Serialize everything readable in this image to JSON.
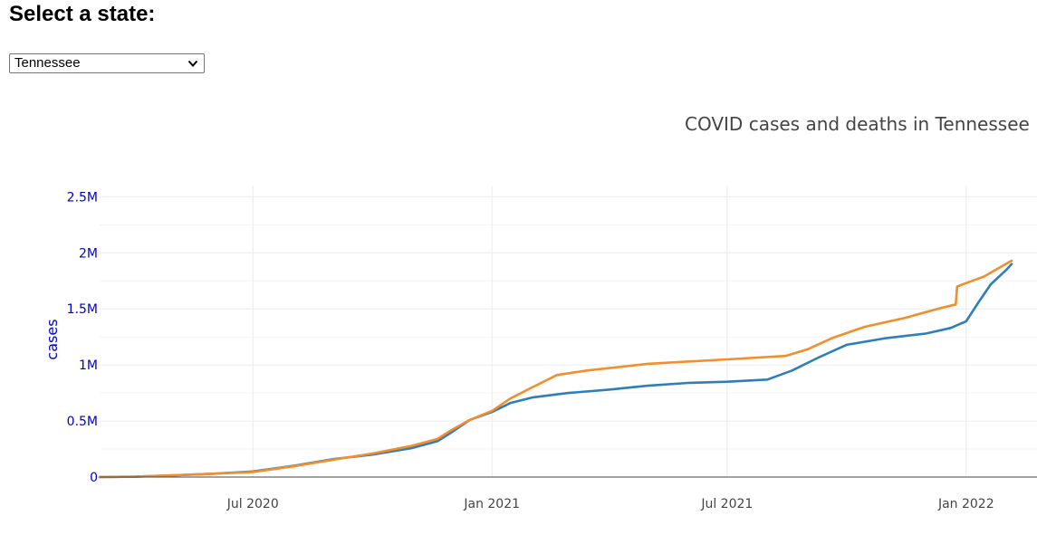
{
  "header": {
    "title": "Select a state:"
  },
  "state_select": {
    "value": "Tennessee"
  },
  "colors": {
    "cases": "#2f7ebc",
    "deaths": "#f28e2b",
    "y_axis": "#0000cc",
    "grid": "#ececec"
  },
  "chart_data": {
    "type": "line",
    "title": "COVID cases and deaths in Tennessee",
    "ylabel": "cases",
    "ylim": [
      0,
      2600000
    ],
    "xlim": [
      "2020-03-05",
      "2022-02-05"
    ],
    "y_ticks": [
      {
        "value": 0,
        "label": "0"
      },
      {
        "value": 500000,
        "label": "0.5M"
      },
      {
        "value": 1000000,
        "label": "1M"
      },
      {
        "value": 1500000,
        "label": "1.5M"
      },
      {
        "value": 2000000,
        "label": "2M"
      },
      {
        "value": 2500000,
        "label": "2.5M"
      }
    ],
    "x_ticks": [
      {
        "value": "2020-07-01",
        "label": "Jul 2020"
      },
      {
        "value": "2021-01-01",
        "label": "Jan 2021"
      },
      {
        "value": "2021-07-01",
        "label": "Jul 2021"
      },
      {
        "value": "2022-01-01",
        "label": "Jan 2022"
      }
    ],
    "grid": true,
    "legend": "none",
    "series": [
      {
        "color": "#2f7ebc",
        "points": [
          [
            "2020-03-05",
            0
          ],
          [
            "2020-04-01",
            3000
          ],
          [
            "2020-05-01",
            15000
          ],
          [
            "2020-06-01",
            30000
          ],
          [
            "2020-07-01",
            50000
          ],
          [
            "2020-08-01",
            100000
          ],
          [
            "2020-09-01",
            160000
          ],
          [
            "2020-10-01",
            200000
          ],
          [
            "2020-11-01",
            260000
          ],
          [
            "2020-11-20",
            320000
          ],
          [
            "2020-12-01",
            400000
          ],
          [
            "2020-12-15",
            510000
          ],
          [
            "2021-01-01",
            580000
          ],
          [
            "2021-01-15",
            660000
          ],
          [
            "2021-02-01",
            710000
          ],
          [
            "2021-03-01",
            750000
          ],
          [
            "2021-04-01",
            780000
          ],
          [
            "2021-05-01",
            815000
          ],
          [
            "2021-06-01",
            840000
          ],
          [
            "2021-07-01",
            850000
          ],
          [
            "2021-08-01",
            870000
          ],
          [
            "2021-08-20",
            950000
          ],
          [
            "2021-09-10",
            1070000
          ],
          [
            "2021-10-01",
            1180000
          ],
          [
            "2021-11-01",
            1240000
          ],
          [
            "2021-12-01",
            1280000
          ],
          [
            "2021-12-20",
            1330000
          ],
          [
            "2022-01-01",
            1390000
          ],
          [
            "2022-01-10",
            1550000
          ],
          [
            "2022-01-20",
            1720000
          ],
          [
            "2022-02-01",
            1850000
          ],
          [
            "2022-02-05",
            1900000
          ]
        ]
      },
      {
        "color": "#f28e2b",
        "points": [
          [
            "2020-03-05",
            0
          ],
          [
            "2020-04-01",
            3000
          ],
          [
            "2020-05-01",
            15000
          ],
          [
            "2020-06-01",
            30000
          ],
          [
            "2020-07-01",
            45000
          ],
          [
            "2020-08-01",
            95000
          ],
          [
            "2020-09-01",
            155000
          ],
          [
            "2020-10-01",
            210000
          ],
          [
            "2020-11-01",
            280000
          ],
          [
            "2020-11-20",
            340000
          ],
          [
            "2020-12-01",
            420000
          ],
          [
            "2020-12-15",
            510000
          ],
          [
            "2021-01-01",
            590000
          ],
          [
            "2021-01-15",
            700000
          ],
          [
            "2021-02-01",
            800000
          ],
          [
            "2021-02-20",
            910000
          ],
          [
            "2021-03-15",
            950000
          ],
          [
            "2021-05-01",
            1010000
          ],
          [
            "2021-07-01",
            1050000
          ],
          [
            "2021-08-15",
            1080000
          ],
          [
            "2021-09-01",
            1140000
          ],
          [
            "2021-09-20",
            1240000
          ],
          [
            "2021-10-15",
            1340000
          ],
          [
            "2021-11-15",
            1420000
          ],
          [
            "2021-12-10",
            1500000
          ],
          [
            "2021-12-24",
            1540000
          ],
          [
            "2021-12-25",
            1700000
          ],
          [
            "2022-01-01",
            1730000
          ],
          [
            "2022-01-15",
            1790000
          ],
          [
            "2022-02-05",
            1930000
          ]
        ]
      }
    ]
  }
}
